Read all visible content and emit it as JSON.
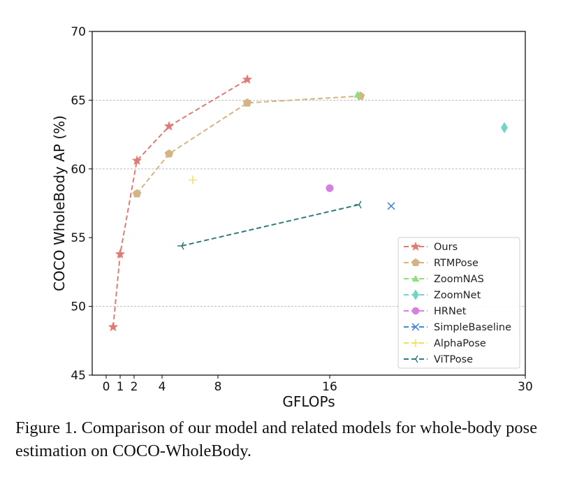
{
  "chart_data": {
    "type": "line",
    "xlabel": "GFLOPs",
    "ylabel": "COCO WholeBody AP (%)",
    "xlim": [
      -1,
      30
    ],
    "ylim": [
      45,
      70
    ],
    "xticks": [
      0,
      1,
      2,
      4,
      8,
      16,
      30
    ],
    "yticks": [
      45,
      50,
      55,
      60,
      65,
      70
    ],
    "ygrid": [
      50,
      60,
      65
    ],
    "legend_position": "lower right",
    "series": [
      {
        "name": "Ours",
        "color": "#e07b73",
        "marker": "star",
        "line": "dashed",
        "x": [
          0.5,
          1.0,
          2.2,
          4.5,
          10.1
        ],
        "y": [
          48.5,
          53.8,
          60.6,
          63.1,
          66.5
        ]
      },
      {
        "name": "RTMPose",
        "color": "#d4b483",
        "marker": "pentagon",
        "line": "dashed",
        "x": [
          2.2,
          4.5,
          10.1,
          18.2
        ],
        "y": [
          58.2,
          61.1,
          64.8,
          65.3
        ]
      },
      {
        "name": "ZoomNAS",
        "color": "#8ee07f",
        "marker": "triangle",
        "line": "dashed",
        "x": [
          18.0
        ],
        "y": [
          65.4
        ]
      },
      {
        "name": "ZoomNet",
        "color": "#6fd6c4",
        "marker": "thin_diamond",
        "line": "dashed",
        "x": [
          28.5
        ],
        "y": [
          63.0
        ]
      },
      {
        "name": "HRNet",
        "color": "#d681e0",
        "marker": "circle",
        "line": "dashed",
        "x": [
          16.0
        ],
        "y": [
          58.6
        ]
      },
      {
        "name": "SimpleBaseline",
        "color": "#4a86d9",
        "marker": "x",
        "line": "dashed",
        "x": [
          20.4
        ],
        "y": [
          57.3
        ]
      },
      {
        "name": "AlphaPose",
        "color": "#f2dc63",
        "marker": "plus",
        "line": "dashed",
        "x": [
          6.2
        ],
        "y": [
          59.2
        ]
      },
      {
        "name": "ViTPose",
        "color": "#2e7d7c",
        "marker": "tri_left",
        "line": "dashed",
        "x": [
          5.4,
          18.1
        ],
        "y": [
          54.4,
          57.4
        ]
      }
    ]
  },
  "caption": {
    "text": "Figure 1. Comparison of our model and related models for whole-body pose estimation on COCO-WholeBody."
  }
}
